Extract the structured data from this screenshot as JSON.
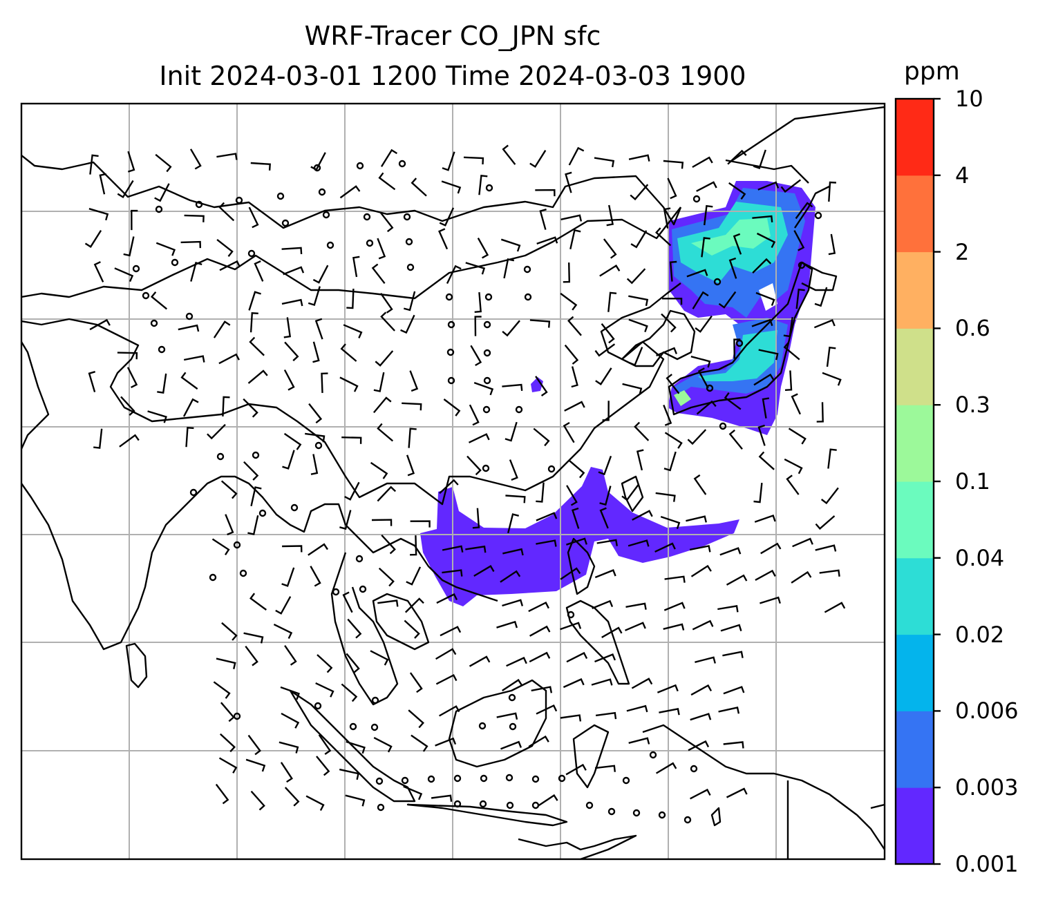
{
  "title": {
    "line1": "WRF-Tracer CO_JPN sfc",
    "line2": "Init 2024-03-01 1200 Time 2024-03-03 1900"
  },
  "colorbar": {
    "unit": "ppm",
    "levels": [
      "0.001",
      "0.003",
      "0.006",
      "0.02",
      "0.04",
      "0.1",
      "0.3",
      "0.6",
      "2",
      "4",
      "10"
    ],
    "colors": [
      "#6228ff",
      "#3574f3",
      "#04b4ec",
      "#2dddd6",
      "#6bfbbe",
      "#9cf99a",
      "#cfe08a",
      "#ffb061",
      "#ff713b",
      "#ff2a16"
    ]
  },
  "map": {
    "gridlines": true,
    "gridline_color": "#b0b0b0",
    "coastline_color": "#000000",
    "wind_barb_color": "#000000",
    "tracer_regions": [
      "Japan / northeast China / Korea plume",
      "South China / Taiwan / Philippine Sea plume"
    ]
  }
}
